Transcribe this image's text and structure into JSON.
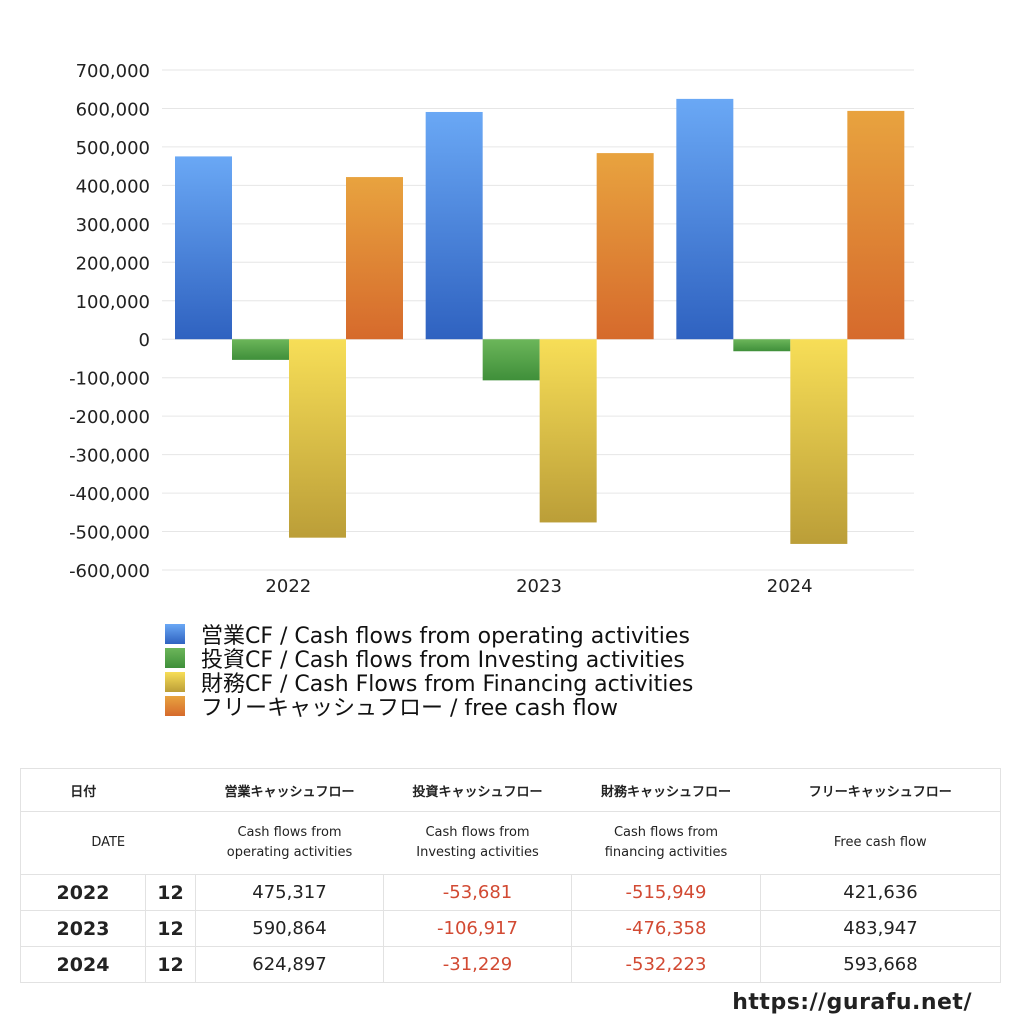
{
  "chart_data": {
    "type": "bar",
    "categories": [
      "2022",
      "2023",
      "2024"
    ],
    "ylim": [
      -600000,
      700000
    ],
    "yticks": [
      "700,000",
      "600,000",
      "500,000",
      "400,000",
      "300,000",
      "200,000",
      "100,000",
      "0",
      "-100,000",
      "-200,000",
      "-300,000",
      "-400,000",
      "-500,000",
      "-600,000"
    ],
    "series": [
      {
        "name": "営業CF / Cash flows from operating activities",
        "values": [
          475317,
          590864,
          624897
        ],
        "color_top": "#6aa8f5",
        "color_bottom": "#2f62c0"
      },
      {
        "name": "投資CF / Cash flows from Investing activities",
        "values": [
          -53681,
          -106917,
          -31229
        ],
        "color_top": "#6cb65a",
        "color_bottom": "#3f8f3a"
      },
      {
        "name": "財務CF / Cash Flows from Financing activities",
        "values": [
          -515949,
          -476358,
          -532223
        ],
        "color_top": "#f7de57",
        "color_bottom": "#bb9e38"
      },
      {
        "name": "フリーキャッシュフロー / free cash flow",
        "values": [
          421636,
          483947,
          593668
        ],
        "color_top": "#e8a33f",
        "color_bottom": "#d66a2c"
      }
    ],
    "grid": true,
    "legend_position": "bottom"
  },
  "table": {
    "header_jp": [
      "日付",
      "",
      "営業キャッシュフロー",
      "投資キャッシュフロー",
      "財務キャッシュフロー",
      "フリーキャッシュフロー"
    ],
    "header_en_1": [
      "DATE",
      "Cash flows from",
      "Cash flows from",
      "Cash flows from",
      "Free cash flow"
    ],
    "header_en_2": [
      "",
      "operating activities",
      "Investing activities",
      "financing activities",
      ""
    ],
    "rows": [
      {
        "year": "2022",
        "month": "12",
        "op": "475,317",
        "inv": "-53,681",
        "fin": "-515,949",
        "fcf": "421,636"
      },
      {
        "year": "2023",
        "month": "12",
        "op": "590,864",
        "inv": "-106,917",
        "fin": "-476,358",
        "fcf": "483,947"
      },
      {
        "year": "2024",
        "month": "12",
        "op": "624,897",
        "inv": "-31,229",
        "fin": "-532,223",
        "fcf": "593,668"
      }
    ]
  },
  "footer": {
    "url": "https://gurafu.net/"
  }
}
